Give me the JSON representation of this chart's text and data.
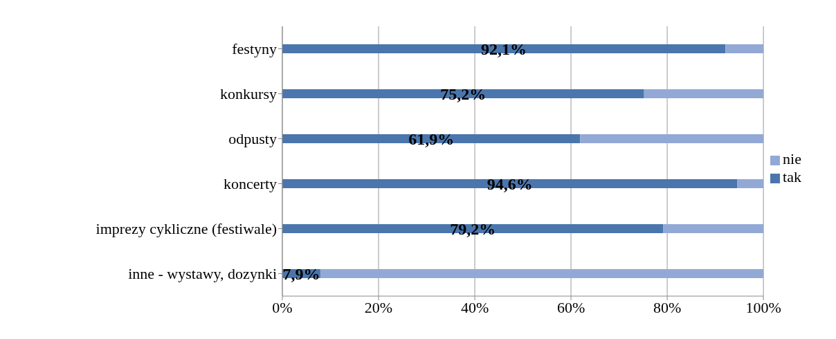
{
  "chart_data": {
    "type": "bar",
    "orientation": "horizontal",
    "stacked": true,
    "categories": [
      "festyny",
      "konkursy",
      "odpusty",
      "koncerty",
      "imprezy cykliczne (festiwale)",
      "inne - wystawy, dozynki"
    ],
    "series": [
      {
        "name": "tak",
        "color": "#4a76ad",
        "values": [
          92.1,
          75.2,
          61.9,
          94.6,
          79.2,
          7.9
        ],
        "value_labels": [
          "92,1%",
          "75,2%",
          "61,9%",
          "94,6%",
          "79,2%",
          "7,9%"
        ]
      },
      {
        "name": "nie",
        "color": "#93a9d5",
        "values": [
          7.9,
          24.8,
          38.1,
          5.4,
          20.8,
          92.1
        ]
      }
    ],
    "xlim": [
      0,
      100
    ],
    "xticks": [
      {
        "value": 0,
        "label": "0%"
      },
      {
        "value": 20,
        "label": "20%"
      },
      {
        "value": 40,
        "label": "40%"
      },
      {
        "value": 60,
        "label": "60%"
      },
      {
        "value": 80,
        "label": "80%"
      },
      {
        "value": 100,
        "label": "100%"
      }
    ],
    "grid": "x",
    "legend": "right"
  }
}
